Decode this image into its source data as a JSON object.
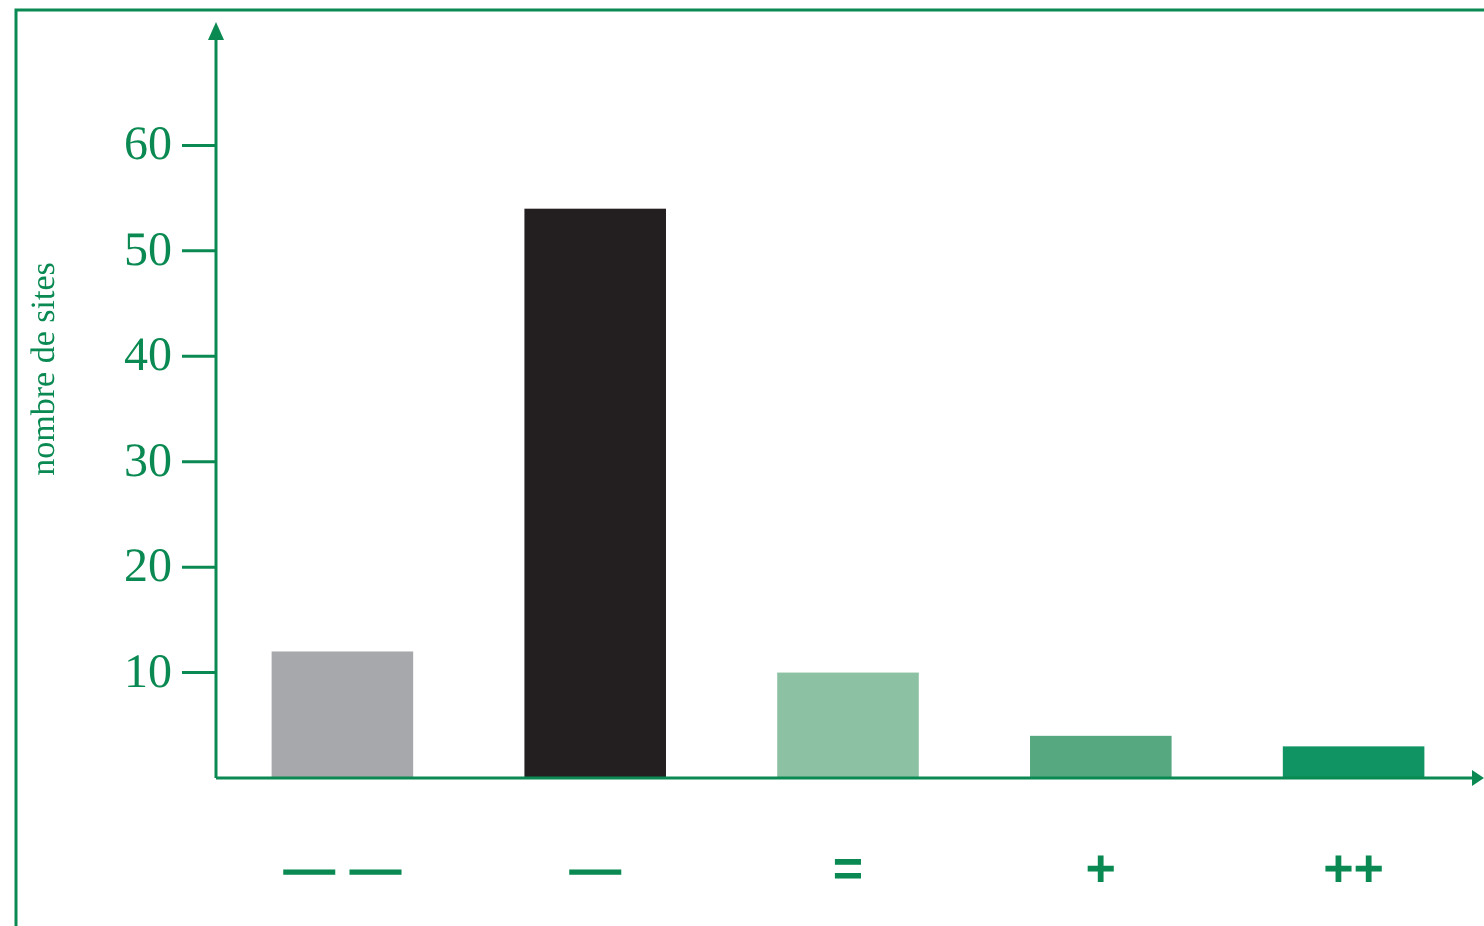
{
  "chart_data": {
    "type": "bar",
    "ylabel": "nombre de sites",
    "categories": [
      "— —",
      "—",
      "=",
      "+",
      "++"
    ],
    "values": [
      12,
      54,
      10,
      4,
      3
    ],
    "colors": [
      "#a7a8ab",
      "#231f20",
      "#8cc2a3",
      "#55a87f",
      "#109463"
    ],
    "ylim": [
      0,
      70
    ],
    "yticks": [
      10,
      20,
      30,
      40,
      50,
      60
    ]
  }
}
